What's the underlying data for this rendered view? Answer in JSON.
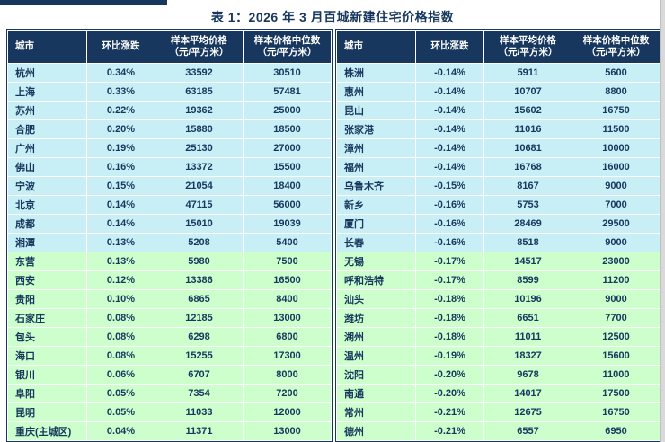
{
  "title": "表 1：2026 年 3 月百城新建住宅价格指数",
  "colors": {
    "header_bg": "#17375E",
    "text": "#17375E",
    "light_blue_row_bg": "#C8EFF6",
    "light_green_row_bg": "#CCFFCC"
  },
  "table": {
    "columns": [
      {
        "key": "city",
        "line1": "城市"
      },
      {
        "key": "mom-change",
        "line1": "环比涨跌"
      },
      {
        "key": "avg-price",
        "line1": "样本平均价格",
        "line2": "（元/平方米）"
      },
      {
        "key": "median-price",
        "line1": "样本价格中位数",
        "line2": "（元/平方米）"
      }
    ],
    "left_rows": [
      {
        "city": "杭州",
        "change": "0.34%",
        "avg": "33592",
        "median": "30510"
      },
      {
        "city": "上海",
        "change": "0.33%",
        "avg": "63185",
        "median": "57481"
      },
      {
        "city": "苏州",
        "change": "0.22%",
        "avg": "19362",
        "median": "25000"
      },
      {
        "city": "合肥",
        "change": "0.20%",
        "avg": "15880",
        "median": "18500"
      },
      {
        "city": "广州",
        "change": "0.19%",
        "avg": "25130",
        "median": "27000"
      },
      {
        "city": "佛山",
        "change": "0.16%",
        "avg": "13372",
        "median": "15500"
      },
      {
        "city": "宁波",
        "change": "0.15%",
        "avg": "21054",
        "median": "18400"
      },
      {
        "city": "北京",
        "change": "0.14%",
        "avg": "47115",
        "median": "56000"
      },
      {
        "city": "成都",
        "change": "0.14%",
        "avg": "15010",
        "median": "19039"
      },
      {
        "city": "湘潭",
        "change": "0.13%",
        "avg": "5208",
        "median": "5400"
      },
      {
        "city": "东营",
        "change": "0.13%",
        "avg": "5980",
        "median": "7500"
      },
      {
        "city": "西安",
        "change": "0.12%",
        "avg": "13386",
        "median": "16500"
      },
      {
        "city": "贵阳",
        "change": "0.10%",
        "avg": "6865",
        "median": "8400"
      },
      {
        "city": "石家庄",
        "change": "0.08%",
        "avg": "12185",
        "median": "13000"
      },
      {
        "city": "包头",
        "change": "0.08%",
        "avg": "6298",
        "median": "6800"
      },
      {
        "city": "海口",
        "change": "0.08%",
        "avg": "15255",
        "median": "17300"
      },
      {
        "city": "银川",
        "change": "0.06%",
        "avg": "6707",
        "median": "8000"
      },
      {
        "city": "阜阳",
        "change": "0.05%",
        "avg": "7354",
        "median": "7200"
      },
      {
        "city": "昆明",
        "change": "0.05%",
        "avg": "11033",
        "median": "12000"
      },
      {
        "city": "重庆(主城区)",
        "change": "0.04%",
        "avg": "11371",
        "median": "13000"
      }
    ],
    "right_rows": [
      {
        "city": "株洲",
        "change": "-0.14%",
        "avg": "5911",
        "median": "5600"
      },
      {
        "city": "惠州",
        "change": "-0.14%",
        "avg": "10707",
        "median": "8800"
      },
      {
        "city": "昆山",
        "change": "-0.14%",
        "avg": "15602",
        "median": "16750"
      },
      {
        "city": "张家港",
        "change": "-0.14%",
        "avg": "11016",
        "median": "11500"
      },
      {
        "city": "漳州",
        "change": "-0.14%",
        "avg": "10681",
        "median": "10000"
      },
      {
        "city": "福州",
        "change": "-0.14%",
        "avg": "16768",
        "median": "16000"
      },
      {
        "city": "乌鲁木齐",
        "change": "-0.15%",
        "avg": "8167",
        "median": "9000"
      },
      {
        "city": "新乡",
        "change": "-0.16%",
        "avg": "5753",
        "median": "7000"
      },
      {
        "city": "厦门",
        "change": "-0.16%",
        "avg": "28469",
        "median": "29500"
      },
      {
        "city": "长春",
        "change": "-0.16%",
        "avg": "8518",
        "median": "9000"
      },
      {
        "city": "无锡",
        "change": "-0.17%",
        "avg": "14517",
        "median": "23000"
      },
      {
        "city": "呼和浩特",
        "change": "-0.17%",
        "avg": "8599",
        "median": "11200"
      },
      {
        "city": "汕头",
        "change": "-0.18%",
        "avg": "10196",
        "median": "9000"
      },
      {
        "city": "潍坊",
        "change": "-0.18%",
        "avg": "6651",
        "median": "7700"
      },
      {
        "city": "湖州",
        "change": "-0.18%",
        "avg": "11011",
        "median": "12500"
      },
      {
        "city": "温州",
        "change": "-0.19%",
        "avg": "18327",
        "median": "15600"
      },
      {
        "city": "沈阳",
        "change": "-0.20%",
        "avg": "9678",
        "median": "11000"
      },
      {
        "city": "南通",
        "change": "-0.20%",
        "avg": "14017",
        "median": "17500"
      },
      {
        "city": "常州",
        "change": "-0.21%",
        "avg": "12675",
        "median": "16750"
      },
      {
        "city": "德州",
        "change": "-0.21%",
        "avg": "6557",
        "median": "6950"
      }
    ]
  }
}
